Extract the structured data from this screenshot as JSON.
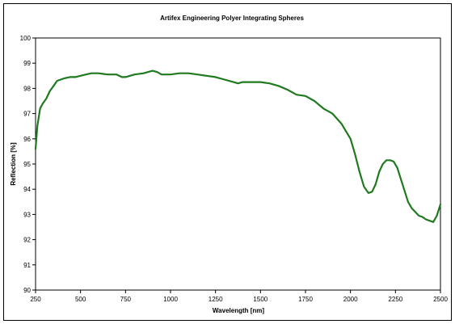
{
  "chart_data": {
    "type": "line",
    "title": "Artifex Engineering Polyer Integrating Spheres",
    "xlabel": "Wavelength [nm]",
    "ylabel": "Reflection [%]",
    "xlim": [
      250,
      2500
    ],
    "ylim": [
      90,
      100
    ],
    "x_ticks": [
      "250",
      "500",
      "750",
      "1000",
      "1250",
      "1500",
      "1750",
      "2000",
      "2250",
      "2500"
    ],
    "y_ticks": [
      "90",
      "91",
      "92",
      "93",
      "94",
      "95",
      "96",
      "97",
      "98",
      "99",
      "100"
    ],
    "grid": false,
    "legend": "none",
    "series": [
      {
        "color": "#1f7a1f",
        "x": [
          250,
          260,
          275,
          290,
          310,
          330,
          350,
          370,
          390,
          410,
          440,
          470,
          500,
          530,
          560,
          600,
          650,
          700,
          730,
          750,
          775,
          800,
          850,
          900,
          925,
          950,
          1000,
          1050,
          1100,
          1150,
          1200,
          1250,
          1300,
          1350,
          1375,
          1400,
          1450,
          1500,
          1550,
          1600,
          1650,
          1700,
          1750,
          1800,
          1850,
          1900,
          1950,
          2000,
          2025,
          2050,
          2075,
          2100,
          2120,
          2140,
          2160,
          2180,
          2200,
          2220,
          2240,
          2260,
          2280,
          2300,
          2320,
          2340,
          2360,
          2380,
          2400,
          2420,
          2440,
          2460,
          2480,
          2500
        ],
        "values": [
          95.6,
          96.5,
          97.2,
          97.4,
          97.6,
          97.9,
          98.1,
          98.3,
          98.35,
          98.4,
          98.45,
          98.45,
          98.5,
          98.55,
          98.6,
          98.6,
          98.55,
          98.55,
          98.45,
          98.45,
          98.5,
          98.55,
          98.6,
          98.7,
          98.65,
          98.55,
          98.55,
          98.6,
          98.6,
          98.55,
          98.5,
          98.45,
          98.35,
          98.25,
          98.2,
          98.25,
          98.25,
          98.25,
          98.2,
          98.1,
          97.95,
          97.75,
          97.7,
          97.5,
          97.2,
          97.0,
          96.6,
          96.0,
          95.4,
          94.7,
          94.1,
          93.85,
          93.9,
          94.2,
          94.7,
          95.0,
          95.15,
          95.15,
          95.1,
          94.85,
          94.4,
          93.95,
          93.5,
          93.25,
          93.1,
          92.95,
          92.9,
          92.8,
          92.75,
          92.7,
          92.95,
          93.4
        ]
      }
    ]
  }
}
